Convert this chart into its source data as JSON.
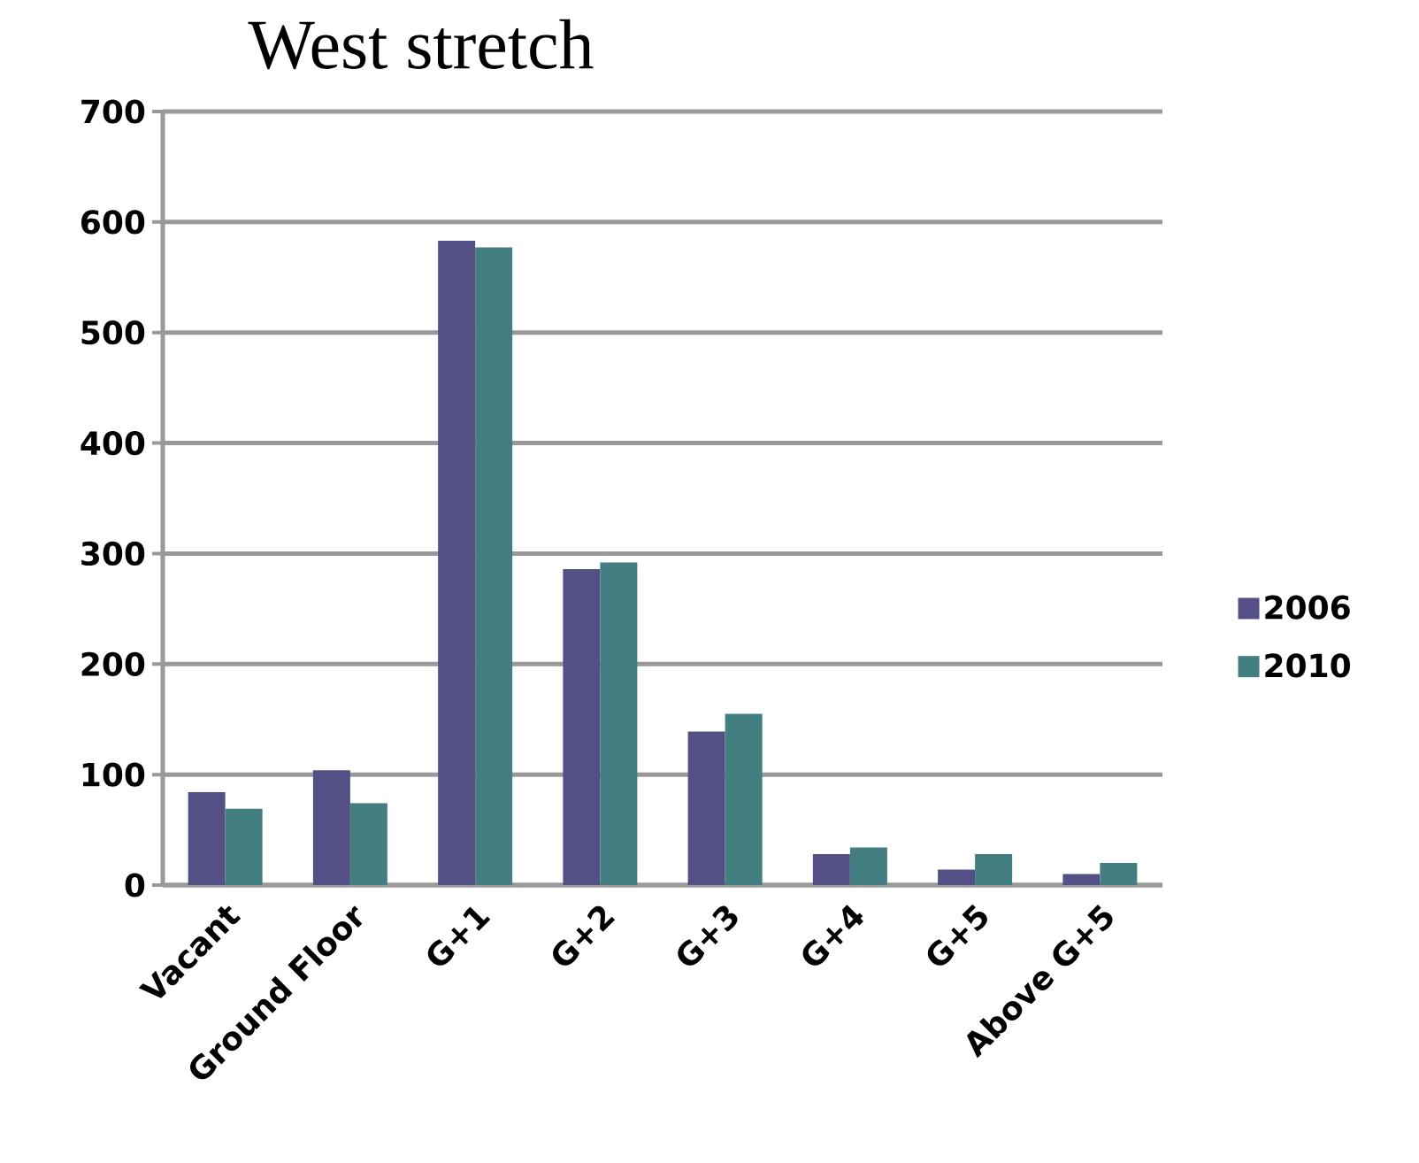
{
  "chart_data": {
    "type": "bar",
    "title": "West  stretch",
    "categories": [
      "Vacant",
      "Ground Floor",
      "G+1",
      "G+2",
      "G+3",
      "G+4",
      "G+5",
      "Above G+5"
    ],
    "series": [
      {
        "name": "2006",
        "color": "#545086",
        "values": [
          84,
          104,
          583,
          286,
          139,
          28,
          14,
          10
        ]
      },
      {
        "name": "2010",
        "color": "#437e80",
        "values": [
          69,
          74,
          577,
          292,
          155,
          34,
          28,
          20
        ]
      }
    ],
    "ylim": [
      0,
      700
    ],
    "yticks": [
      0,
      100,
      200,
      300,
      400,
      500,
      600,
      700
    ],
    "grid": "y",
    "legend": "right"
  }
}
